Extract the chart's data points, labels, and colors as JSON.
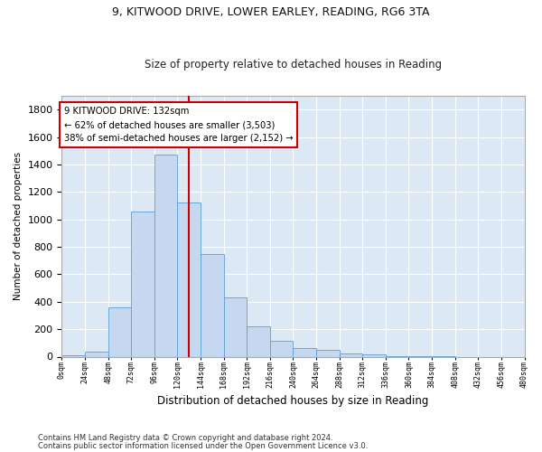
{
  "title1": "9, KITWOOD DRIVE, LOWER EARLEY, READING, RG6 3TA",
  "title2": "Size of property relative to detached houses in Reading",
  "xlabel": "Distribution of detached houses by size in Reading",
  "ylabel": "Number of detached properties",
  "bar_color": "#c5d8f0",
  "bar_edge_color": "#5a9fd4",
  "bin_edges": [
    0,
    24,
    48,
    72,
    96,
    120,
    144,
    168,
    192,
    216,
    240,
    264,
    288,
    312,
    336,
    360,
    384,
    408,
    432,
    456,
    480
  ],
  "bar_values": [
    10,
    35,
    360,
    1060,
    1470,
    1120,
    750,
    430,
    220,
    115,
    60,
    50,
    20,
    15,
    5,
    2,
    1,
    0,
    0,
    0
  ],
  "property_size": 132,
  "vline_color": "#cc0000",
  "annotation_text": "9 KITWOOD DRIVE: 132sqm\n← 62% of detached houses are smaller (3,503)\n38% of semi-detached houses are larger (2,152) →",
  "annotation_box_facecolor": "#ffffff",
  "annotation_box_edgecolor": "#cc0000",
  "footnote1": "Contains HM Land Registry data © Crown copyright and database right 2024.",
  "footnote2": "Contains public sector information licensed under the Open Government Licence v3.0.",
  "ylim": [
    0,
    1900
  ],
  "xlim": [
    0,
    480
  ],
  "plot_bg_color": "#dce9f5",
  "grid_color": "#ffffff",
  "tick_labels": [
    "0sqm",
    "24sqm",
    "48sqm",
    "72sqm",
    "96sqm",
    "120sqm",
    "144sqm",
    "168sqm",
    "192sqm",
    "216sqm",
    "240sqm",
    "264sqm",
    "288sqm",
    "312sqm",
    "336sqm",
    "360sqm",
    "384sqm",
    "408sqm",
    "432sqm",
    "456sqm",
    "480sqm"
  ]
}
